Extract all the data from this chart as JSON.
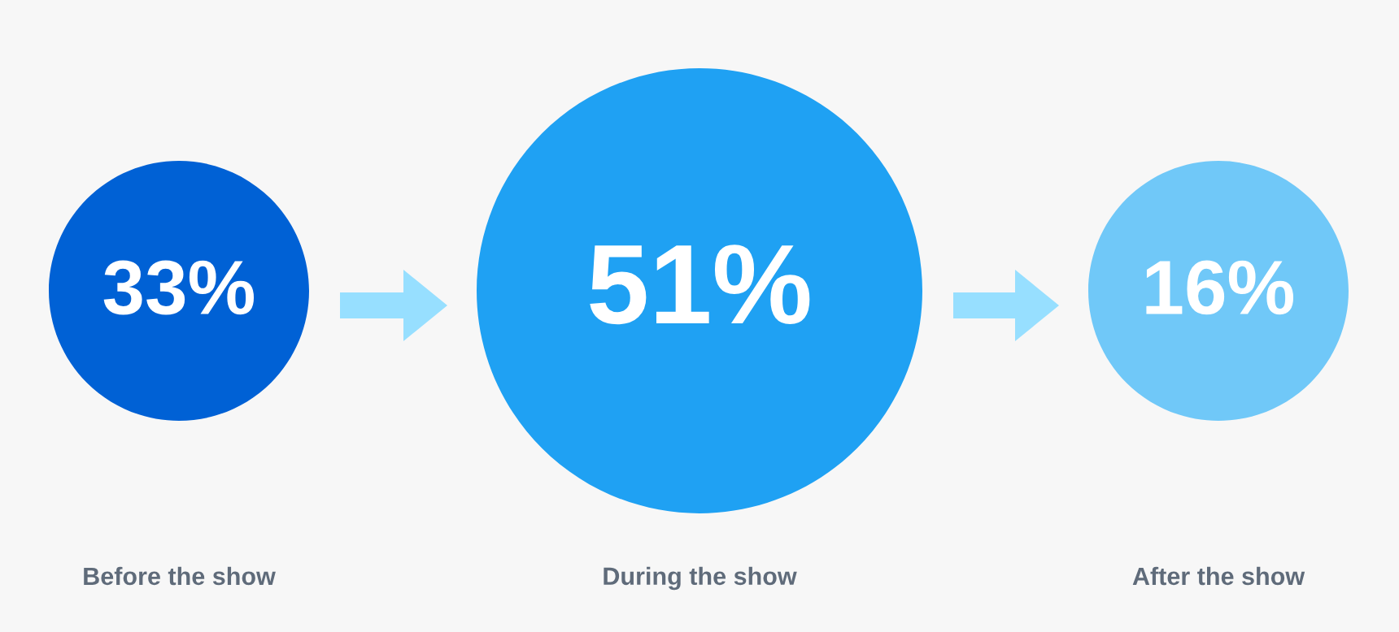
{
  "chart_data": {
    "type": "other",
    "categories": [
      "Before the show",
      "During the show",
      "After the show"
    ],
    "values": [
      33,
      51,
      16
    ],
    "value_labels": [
      "33%",
      "51%",
      "16%"
    ],
    "colors": [
      "#0061d5",
      "#1fa1f3",
      "#70c8f8"
    ]
  }
}
